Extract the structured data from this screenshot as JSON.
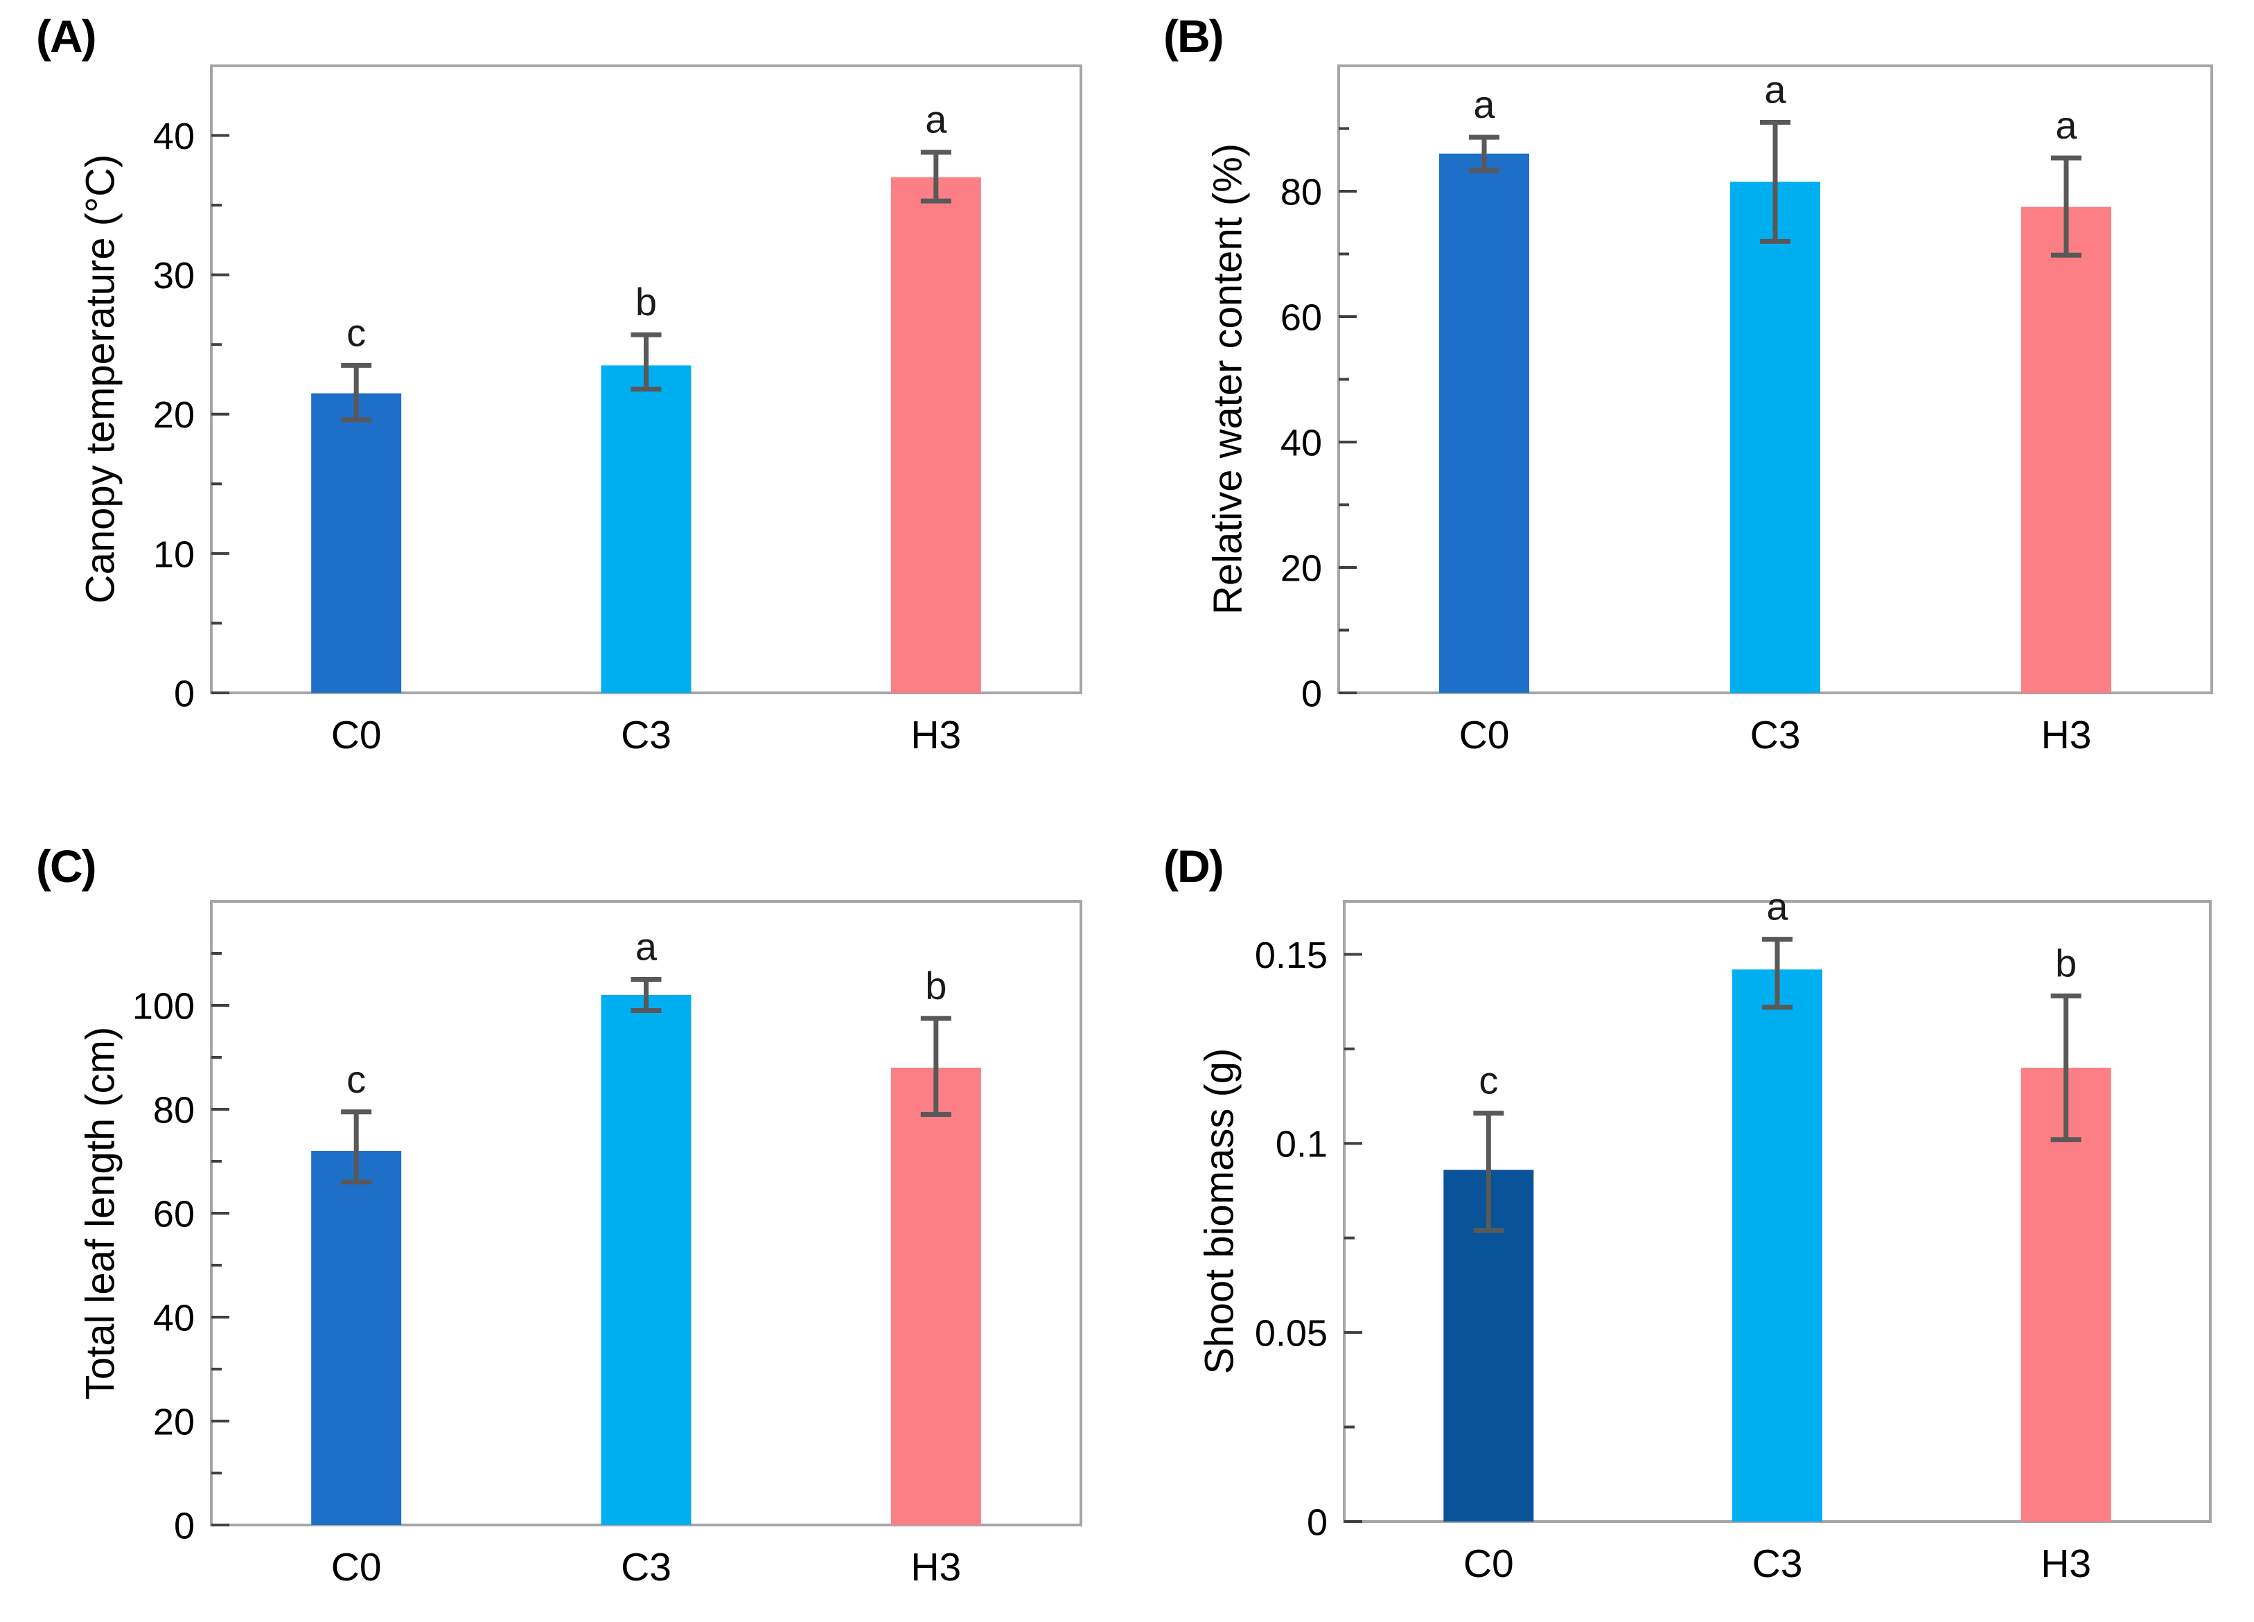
{
  "styles": {
    "axis_color": "#A6A6A6",
    "tick_color": "#404040",
    "error_bar_color": "#595959",
    "text_color": "#000000",
    "sig_letter_color": "#1A1A1A",
    "background": "#FFFFFF"
  },
  "chart_data": [
    {
      "panel": "(A)",
      "type": "bar",
      "title": "",
      "ylabel": "Canopy temperature (°C)",
      "xlabel": "",
      "categories": [
        "C0",
        "C3",
        "H3"
      ],
      "values": [
        21.5,
        23.5,
        37.0
      ],
      "error_low": [
        19.6,
        21.8,
        35.3
      ],
      "error_high": [
        23.5,
        25.7,
        38.8
      ],
      "sig_letters": [
        "c",
        "b",
        "a"
      ],
      "bar_colors": [
        "#1E6FC8",
        "#00AFF0",
        "#FB7F84"
      ],
      "ylim": [
        0,
        45
      ],
      "ytick_values": [
        0,
        10,
        20,
        30,
        40
      ],
      "ytick_labels": [
        "0",
        "10",
        "20",
        "30",
        "40"
      ],
      "yminor_step": 5,
      "grid": false,
      "legend": "none"
    },
    {
      "panel": "(B)",
      "type": "bar",
      "title": "",
      "ylabel": "Relative water content (%)",
      "xlabel": "",
      "categories": [
        "C0",
        "C3",
        "H3"
      ],
      "values": [
        86,
        81.5,
        77.5
      ],
      "error_low": [
        83.3,
        72,
        69.8
      ],
      "error_high": [
        88.6,
        91,
        85.3
      ],
      "sig_letters": [
        "a",
        "a",
        "a"
      ],
      "bar_colors": [
        "#1E6FC8",
        "#00AFF0",
        "#FB7F84"
      ],
      "ylim": [
        0,
        100
      ],
      "ytick_values": [
        0,
        20,
        40,
        60,
        80
      ],
      "ytick_labels": [
        "0",
        "20",
        "40",
        "60",
        "80"
      ],
      "yminor_step": 10,
      "grid": false,
      "legend": "none"
    },
    {
      "panel": "(C)",
      "type": "bar",
      "title": "",
      "ylabel": "Total leaf length (cm)",
      "xlabel": "",
      "categories": [
        "C0",
        "C3",
        "H3"
      ],
      "values": [
        72,
        102,
        88
      ],
      "error_low": [
        66,
        99,
        79
      ],
      "error_high": [
        79.5,
        105,
        97.5
      ],
      "sig_letters": [
        "c",
        "a",
        "b"
      ],
      "bar_colors": [
        "#1E6FC8",
        "#00AFF0",
        "#FB7F84"
      ],
      "ylim": [
        0,
        120
      ],
      "ytick_values": [
        0,
        20,
        40,
        60,
        80,
        100
      ],
      "ytick_labels": [
        "0",
        "20",
        "40",
        "60",
        "80",
        "100"
      ],
      "yminor_step": 10,
      "grid": false,
      "legend": "none"
    },
    {
      "panel": "(D)",
      "type": "bar",
      "title": "",
      "ylabel": "Shoot biomass (g)",
      "xlabel": "",
      "categories": [
        "C0",
        "C3",
        "H3"
      ],
      "values": [
        0.093,
        0.146,
        0.12
      ],
      "error_low": [
        0.077,
        0.136,
        0.101
      ],
      "error_high": [
        0.108,
        0.154,
        0.139
      ],
      "sig_letters": [
        "c",
        "a",
        "b"
      ],
      "bar_colors": [
        "#095399",
        "#00AFF0",
        "#FB7F84"
      ],
      "ylim": [
        0,
        0.164
      ],
      "ytick_values": [
        0,
        0.05,
        0.1,
        0.15
      ],
      "ytick_labels": [
        "0",
        "0.05",
        "0.1",
        "0.15"
      ],
      "yminor_step": 0.025,
      "grid": false,
      "legend": "none"
    }
  ]
}
